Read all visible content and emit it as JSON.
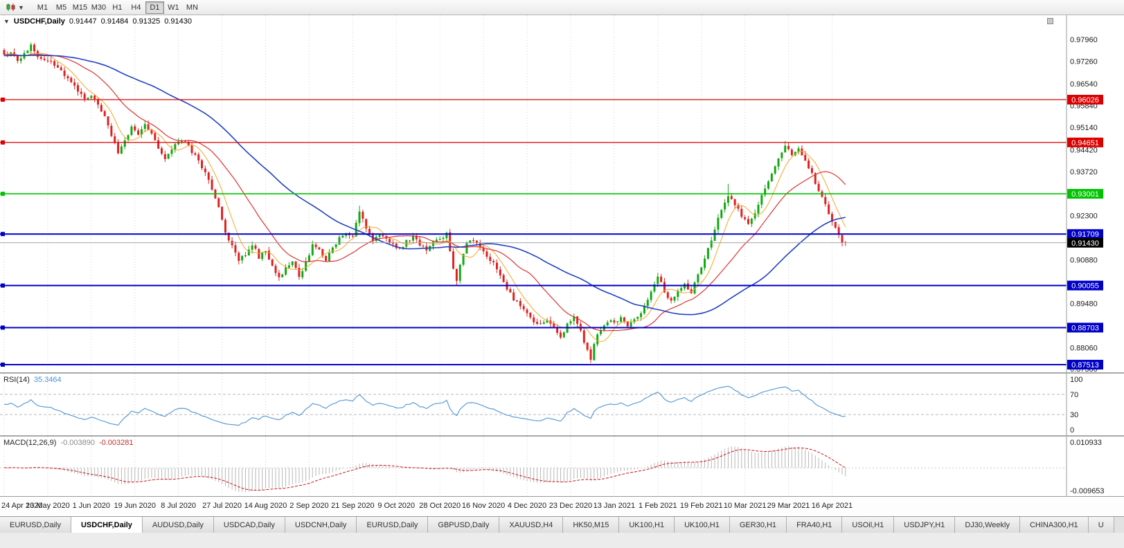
{
  "toolbar": {
    "chart_type_icon": "candlestick-chart",
    "dropdown_glyph": "▼",
    "timeframes": [
      "M1",
      "M5",
      "M15",
      "M30",
      "H1",
      "H4",
      "D1",
      "W1",
      "MN"
    ],
    "active_timeframe": "D1"
  },
  "chart": {
    "symbol_title": "USDCHF,Daily",
    "ohlc": {
      "open": "0.91447",
      "high": "0.91484",
      "low": "0.91325",
      "close": "0.91430"
    },
    "price_axis_labels": [
      "0.97960",
      "0.97260",
      "0.96540",
      "0.95840",
      "0.95140",
      "0.94420",
      "0.93720",
      "0.92300",
      "0.90880",
      "0.89480",
      "0.88060",
      "0.87380"
    ],
    "levels": [
      {
        "price": 0.96026,
        "label": "0.96026",
        "color": "#dd0000",
        "width": 1.2
      },
      {
        "price": 0.94651,
        "label": "0.94651",
        "color": "#dd0000",
        "width": 1.2
      },
      {
        "price": 0.93001,
        "label": "0.93001",
        "color": "#00c400",
        "width": 1.6
      },
      {
        "price": 0.91709,
        "label": "0.91709",
        "color": "#0000c8",
        "width": 2
      },
      {
        "price": 0.90055,
        "label": "0.90055",
        "color": "#0000c8",
        "width": 2
      },
      {
        "price": 0.88703,
        "label": "0.88703",
        "color": "#0000c8",
        "width": 2
      },
      {
        "price": 0.87513,
        "label": "0.87513",
        "color": "#0000c8",
        "width": 2
      }
    ],
    "current_price": {
      "value": 0.9143,
      "label": "0.91430"
    },
    "date_ticks": [
      {
        "label": "24 Apr 2020",
        "bar": 0
      },
      {
        "label": "13 May 2020",
        "bar": 13
      },
      {
        "label": "1 Jun 2020",
        "bar": 26
      },
      {
        "label": "19 Jun 2020",
        "bar": 39
      },
      {
        "label": "8 Jul 2020",
        "bar": 52
      },
      {
        "label": "27 Jul 2020",
        "bar": 65
      },
      {
        "label": "14 Aug 2020",
        "bar": 78
      },
      {
        "label": "2 Sep 2020",
        "bar": 91
      },
      {
        "label": "21 Sep 2020",
        "bar": 104
      },
      {
        "label": "9 Oct 2020",
        "bar": 117
      },
      {
        "label": "28 Oct 2020",
        "bar": 130
      },
      {
        "label": "16 Nov 2020",
        "bar": 143
      },
      {
        "label": "4 Dec 2020",
        "bar": 156
      },
      {
        "label": "23 Dec 2020",
        "bar": 169
      },
      {
        "label": "13 Jan 2021",
        "bar": 182
      },
      {
        "label": "1 Feb 2021",
        "bar": 195
      },
      {
        "label": "19 Feb 2021",
        "bar": 208
      },
      {
        "label": "10 Mar 2021",
        "bar": 221
      },
      {
        "label": "29 Mar 2021",
        "bar": 234
      },
      {
        "label": "16 Apr 2021",
        "bar": 247
      }
    ]
  },
  "chart_data": {
    "type": "candlestick",
    "symbol": "USDCHF",
    "timeframe": "Daily",
    "bars": 252,
    "date_range": {
      "start": "24 Apr 2020",
      "end": "16 Apr 2021"
    },
    "y_axis_range": [
      0.8738,
      0.9796
    ],
    "price_anchors": [
      [
        0,
        0.9742
      ],
      [
        2,
        0.976
      ],
      [
        4,
        0.9728
      ],
      [
        6,
        0.9748
      ],
      [
        8,
        0.9774
      ],
      [
        10,
        0.9742
      ],
      [
        13,
        0.973
      ],
      [
        16,
        0.9706
      ],
      [
        19,
        0.9672
      ],
      [
        22,
        0.9628
      ],
      [
        24,
        0.9606
      ],
      [
        26,
        0.9616
      ],
      [
        28,
        0.9586
      ],
      [
        30,
        0.9545
      ],
      [
        32,
        0.9488
      ],
      [
        34,
        0.9432
      ],
      [
        36,
        0.9472
      ],
      [
        38,
        0.951
      ],
      [
        40,
        0.949
      ],
      [
        42,
        0.9522
      ],
      [
        44,
        0.9498
      ],
      [
        46,
        0.945
      ],
      [
        48,
        0.9412
      ],
      [
        50,
        0.9446
      ],
      [
        52,
        0.9462
      ],
      [
        54,
        0.9472
      ],
      [
        56,
        0.9436
      ],
      [
        58,
        0.9408
      ],
      [
        60,
        0.9365
      ],
      [
        62,
        0.9318
      ],
      [
        64,
        0.9252
      ],
      [
        66,
        0.9178
      ],
      [
        68,
        0.9132
      ],
      [
        70,
        0.9082
      ],
      [
        72,
        0.9108
      ],
      [
        74,
        0.914
      ],
      [
        76,
        0.9096
      ],
      [
        78,
        0.9114
      ],
      [
        80,
        0.9066
      ],
      [
        82,
        0.9032
      ],
      [
        84,
        0.9058
      ],
      [
        86,
        0.9088
      ],
      [
        88,
        0.9034
      ],
      [
        90,
        0.9078
      ],
      [
        92,
        0.9132
      ],
      [
        94,
        0.9118
      ],
      [
        96,
        0.9084
      ],
      [
        98,
        0.9128
      ],
      [
        100,
        0.9158
      ],
      [
        102,
        0.9178
      ],
      [
        104,
        0.9165
      ],
      [
        106,
        0.9238
      ],
      [
        108,
        0.9192
      ],
      [
        110,
        0.9152
      ],
      [
        112,
        0.9174
      ],
      [
        114,
        0.9152
      ],
      [
        116,
        0.9138
      ],
      [
        118,
        0.9122
      ],
      [
        120,
        0.9148
      ],
      [
        122,
        0.9164
      ],
      [
        124,
        0.9138
      ],
      [
        126,
        0.9118
      ],
      [
        128,
        0.9142
      ],
      [
        130,
        0.9156
      ],
      [
        132,
        0.917
      ],
      [
        134,
        0.9062
      ],
      [
        135,
        0.9022
      ],
      [
        136,
        0.9078
      ],
      [
        138,
        0.9138
      ],
      [
        140,
        0.9152
      ],
      [
        142,
        0.9128
      ],
      [
        144,
        0.9102
      ],
      [
        146,
        0.9075
      ],
      [
        148,
        0.9038
      ],
      [
        150,
        0.8998
      ],
      [
        152,
        0.8962
      ],
      [
        154,
        0.8938
      ],
      [
        156,
        0.8916
      ],
      [
        158,
        0.8892
      ],
      [
        160,
        0.8878
      ],
      [
        162,
        0.8898
      ],
      [
        164,
        0.8868
      ],
      [
        166,
        0.8842
      ],
      [
        168,
        0.8878
      ],
      [
        170,
        0.8908
      ],
      [
        172,
        0.8858
      ],
      [
        174,
        0.8796
      ],
      [
        175,
        0.8768
      ],
      [
        176,
        0.8822
      ],
      [
        178,
        0.8868
      ],
      [
        180,
        0.8892
      ],
      [
        182,
        0.8884
      ],
      [
        184,
        0.8902
      ],
      [
        186,
        0.8878
      ],
      [
        188,
        0.8892
      ],
      [
        190,
        0.8918
      ],
      [
        192,
        0.8958
      ],
      [
        194,
        0.9008
      ],
      [
        195,
        0.9038
      ],
      [
        197,
        0.8984
      ],
      [
        199,
        0.8956
      ],
      [
        201,
        0.8992
      ],
      [
        203,
        0.9008
      ],
      [
        205,
        0.8982
      ],
      [
        207,
        0.9042
      ],
      [
        209,
        0.9092
      ],
      [
        211,
        0.9152
      ],
      [
        213,
        0.9222
      ],
      [
        215,
        0.9275
      ],
      [
        216,
        0.9298
      ],
      [
        218,
        0.9268
      ],
      [
        220,
        0.9228
      ],
      [
        222,
        0.9206
      ],
      [
        224,
        0.9242
      ],
      [
        226,
        0.9292
      ],
      [
        228,
        0.9338
      ],
      [
        230,
        0.9388
      ],
      [
        232,
        0.9436
      ],
      [
        233,
        0.9458
      ],
      [
        235,
        0.9425
      ],
      [
        237,
        0.9442
      ],
      [
        239,
        0.9402
      ],
      [
        241,
        0.9362
      ],
      [
        243,
        0.9312
      ],
      [
        245,
        0.9262
      ],
      [
        247,
        0.9212
      ],
      [
        249,
        0.9168
      ],
      [
        250,
        0.914
      ],
      [
        251,
        0.9143
      ]
    ],
    "wick_overrides": {
      "8": {
        "high": 0.9786
      },
      "106": {
        "high": 0.9262
      },
      "135": {
        "low": 0.9006
      },
      "175": {
        "low": 0.8757
      },
      "216": {
        "high": 0.9332
      },
      "233": {
        "high": 0.947
      }
    },
    "last_candle": {
      "open": 0.91447,
      "high": 0.91484,
      "low": 0.91325,
      "close": 0.9143
    },
    "moving_averages": [
      {
        "name": "ma-fast",
        "period": 7,
        "color": "#f5a623",
        "width": 1
      },
      {
        "name": "ma-mid",
        "period": 21,
        "color": "#e03131",
        "width": 1.2
      },
      {
        "name": "ma-slow",
        "period": 55,
        "color": "#2040c0",
        "width": 1.6
      }
    ],
    "horizontal_lines": [
      0.96026,
      0.94651,
      0.93001,
      0.91709,
      0.90055,
      0.88703,
      0.87513
    ]
  },
  "rsi": {
    "title": "RSI(14)",
    "value": "35.3464",
    "period": 14,
    "axis_labels": [
      100,
      70,
      30,
      0
    ],
    "dashed_levels": [
      70,
      30
    ],
    "line_color": "#5b9bd5"
  },
  "macd": {
    "title": "MACD(12,26,9)",
    "value_main": "-0.003890",
    "value_signal": "-0.003281",
    "fast": 12,
    "slow": 26,
    "signal": 9,
    "axis_max": "0.010933",
    "axis_min": "-0.009653",
    "hist_color": "#b6b6b6",
    "signal_color": "#cc1111"
  },
  "tabs": [
    {
      "label": "EURUSD,Daily",
      "active": false
    },
    {
      "label": "USDCHF,Daily",
      "active": true
    },
    {
      "label": "AUDUSD,Daily",
      "active": false
    },
    {
      "label": "USDCAD,Daily",
      "active": false
    },
    {
      "label": "USDCNH,Daily",
      "active": false
    },
    {
      "label": "EURUSD,Daily",
      "active": false
    },
    {
      "label": "GBPUSD,Daily",
      "active": false
    },
    {
      "label": "XAUUSD,H4",
      "active": false
    },
    {
      "label": "HK50,M15",
      "active": false
    },
    {
      "label": "UK100,H1",
      "active": false
    },
    {
      "label": "UK100,H1",
      "active": false
    },
    {
      "label": "GER30,H1",
      "active": false
    },
    {
      "label": "FRA40,H1",
      "active": false
    },
    {
      "label": "USOil,H1",
      "active": false
    },
    {
      "label": "USDJPY,H1",
      "active": false
    },
    {
      "label": "DJ30,Weekly",
      "active": false
    },
    {
      "label": "CHINA300,H1",
      "active": false
    },
    {
      "label": "U",
      "active": false
    }
  ],
  "colors": {
    "bull": "#12a812",
    "bear": "#e02020",
    "grid": "#d2d2d2",
    "axis_line": "#9a9a9a",
    "current_price_line": "#a0a0a0",
    "current_badge": "#000000"
  }
}
